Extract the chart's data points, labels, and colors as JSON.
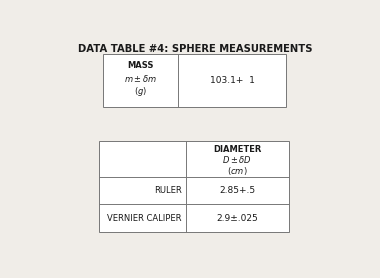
{
  "title": "DATA TABLE #4: SPHERE MEASUREMENTS",
  "background_color": "#f0ede8",
  "table1": {
    "col2_value": "103.1+  1"
  },
  "table2": {
    "rows": [
      [
        "RULER",
        "2.85+.5"
      ],
      [
        "VERNIER CALIPER",
        "2.9±.025"
      ]
    ]
  },
  "title_fontsize": 7.2,
  "cell_fontsize": 6.0,
  "data_fontsize": 6.5
}
